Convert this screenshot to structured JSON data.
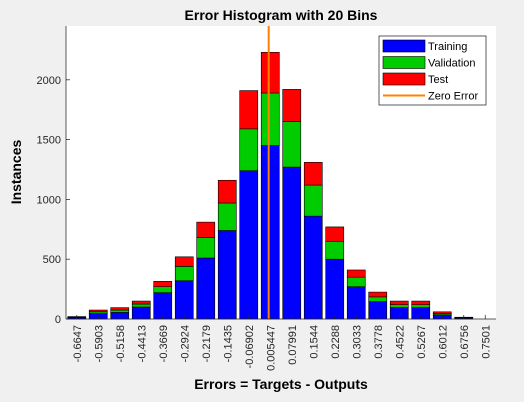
{
  "chart_data": {
    "type": "bar",
    "stacked": true,
    "title": "Error Histogram with 20 Bins",
    "xlabel": "Errors = Targets - Outputs",
    "ylabel": "Instances",
    "ylim": [
      0,
      2450
    ],
    "yticks": [
      0,
      500,
      1000,
      1500,
      2000
    ],
    "categories": [
      "-0.6647",
      "-0.5903",
      "-0.5158",
      "-0.4413",
      "-0.3669",
      "-0.2924",
      "-0.2179",
      "-0.1435",
      "-0.06902",
      "0.005447",
      "0.07991",
      "0.1544",
      "0.2288",
      "0.3033",
      "0.3778",
      "0.4522",
      "0.5267",
      "0.6012",
      "0.6756",
      "0.7501"
    ],
    "series": [
      {
        "name": "Training",
        "color": "#0000ff",
        "values": [
          10,
          45,
          55,
          100,
          220,
          320,
          510,
          740,
          1240,
          1450,
          1270,
          860,
          500,
          270,
          145,
          95,
          95,
          35,
          8,
          0
        ]
      },
      {
        "name": "Validation",
        "color": "#00cc00",
        "values": [
          5,
          15,
          20,
          25,
          50,
          120,
          170,
          230,
          350,
          440,
          380,
          260,
          150,
          80,
          40,
          25,
          25,
          10,
          3,
          0
        ]
      },
      {
        "name": "Test",
        "color": "#ff0000",
        "values": [
          5,
          15,
          20,
          25,
          45,
          80,
          130,
          190,
          320,
          340,
          270,
          190,
          120,
          60,
          40,
          30,
          30,
          15,
          4,
          0
        ]
      }
    ],
    "reference_line": {
      "name": "Zero Error",
      "color": "#ff8000",
      "x": 0
    },
    "legend": {
      "position": "top-right",
      "entries": [
        "Training",
        "Validation",
        "Test",
        "Zero Error"
      ]
    }
  }
}
